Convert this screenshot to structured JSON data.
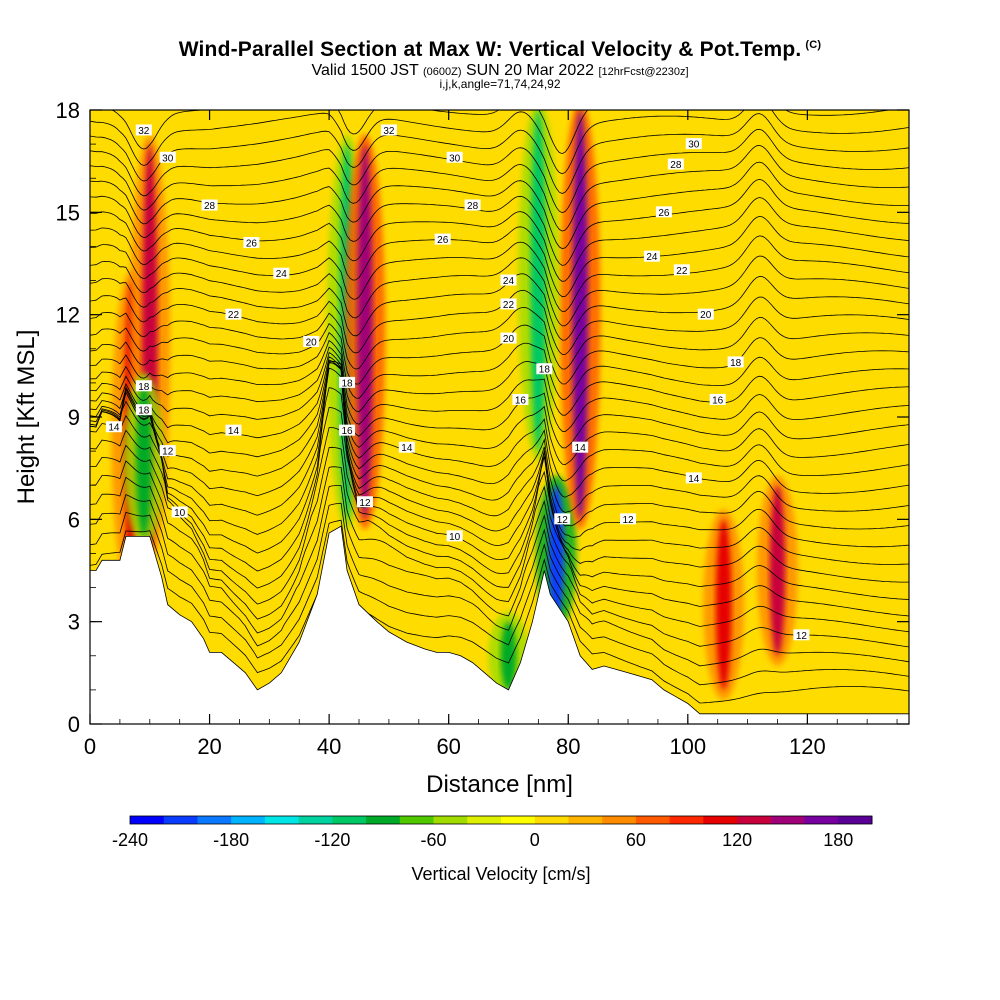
{
  "header": {
    "title": "Wind-Parallel Section at Max W: Vertical Velocity & Pot.Temp.",
    "copyright": "(C)",
    "subtitle_main_a": "Valid 1500 JST",
    "subtitle_small_a": "(0600Z)",
    "subtitle_main_b": "SUN 20 Mar 2022",
    "subtitle_small_b": "[12hrFcst@2230z]",
    "indices": "i,j,k,angle=71,74,24,92"
  },
  "chart_data": {
    "type": "heatmap",
    "xlabel": "Distance [nm]",
    "ylabel": "Height [Kft MSL]",
    "xlim": [
      0,
      137
    ],
    "ylim": [
      0,
      18
    ],
    "x_ticks": [
      0,
      20,
      40,
      60,
      80,
      100,
      120
    ],
    "y_ticks": [
      0,
      3,
      6,
      9,
      12,
      15,
      18
    ],
    "colorbar": {
      "label": "Vertical Velocity [cm/s]",
      "min": -240,
      "max": 200,
      "step": 20,
      "tick_labels": [
        -240,
        -180,
        -120,
        -60,
        0,
        60,
        120,
        180
      ],
      "colors": [
        "#0000ff",
        "#0a3cff",
        "#0a78ff",
        "#00b4ff",
        "#00e6e6",
        "#00d2a0",
        "#00c864",
        "#00aa28",
        "#50c800",
        "#a0dc00",
        "#dcf000",
        "#ffff00",
        "#ffdc00",
        "#ffb400",
        "#ff8c00",
        "#ff5a00",
        "#ff2800",
        "#e60000",
        "#c8003c",
        "#a00078",
        "#7800a0",
        "#5a0096"
      ]
    },
    "vertical_velocity_features": [
      {
        "x": 7,
        "z_range": [
          4,
          13
        ],
        "w": 110
      },
      {
        "x": 10,
        "z_range": [
          5,
          17
        ],
        "w": 130
      },
      {
        "x": 9,
        "z_range": [
          5.5,
          10
        ],
        "w": -100
      },
      {
        "x": 43,
        "z_range": [
          6,
          17
        ],
        "w": -110
      },
      {
        "x": 46,
        "z_range": [
          6,
          17
        ],
        "w": 140
      },
      {
        "x": 70,
        "z_range": [
          1,
          3
        ],
        "w": -90
      },
      {
        "x": 78,
        "z_range": [
          3,
          7
        ],
        "w": -220
      },
      {
        "x": 82,
        "z_range": [
          6,
          18
        ],
        "w": 170
      },
      {
        "x": 75,
        "z_range": [
          8,
          18
        ],
        "w": -110
      },
      {
        "x": 115,
        "z_range": [
          2,
          7
        ],
        "w": 130
      },
      {
        "x": 106,
        "z_range": [
          1,
          6
        ],
        "w": 110
      }
    ],
    "terrain_kft": [
      [
        0,
        4.5
      ],
      [
        1,
        4.5
      ],
      [
        2,
        4.8
      ],
      [
        5,
        4.8
      ],
      [
        6,
        5.5
      ],
      [
        10,
        5.5
      ],
      [
        12,
        4.3
      ],
      [
        13,
        3.5
      ],
      [
        15,
        3.2
      ],
      [
        17,
        3.0
      ],
      [
        19,
        2.5
      ],
      [
        20,
        2.1
      ],
      [
        22,
        2.1
      ],
      [
        24,
        1.8
      ],
      [
        26,
        1.5
      ],
      [
        28,
        1.0
      ],
      [
        30,
        1.2
      ],
      [
        32,
        1.5
      ],
      [
        35,
        2.4
      ],
      [
        38,
        3.8
      ],
      [
        40,
        5.6
      ],
      [
        42,
        5.8
      ],
      [
        43,
        4.5
      ],
      [
        45,
        3.5
      ],
      [
        48,
        3.0
      ],
      [
        50,
        2.7
      ],
      [
        53,
        2.4
      ],
      [
        56,
        2.2
      ],
      [
        58,
        2.1
      ],
      [
        60,
        2.1
      ],
      [
        62,
        2.0
      ],
      [
        64,
        1.8
      ],
      [
        66,
        1.5
      ],
      [
        68,
        1.2
      ],
      [
        70,
        1.0
      ],
      [
        72,
        1.8
      ],
      [
        74,
        3.0
      ],
      [
        76,
        4.5
      ],
      [
        77,
        3.8
      ],
      [
        80,
        3.0
      ],
      [
        82,
        2.0
      ],
      [
        84,
        1.6
      ],
      [
        86,
        1.7
      ],
      [
        88,
        1.6
      ],
      [
        90,
        1.5
      ],
      [
        92,
        1.4
      ],
      [
        94,
        1.3
      ],
      [
        96,
        1.0
      ],
      [
        98,
        0.8
      ],
      [
        100,
        0.6
      ],
      [
        102,
        0.3
      ],
      [
        104,
        0.3
      ],
      [
        106,
        0.3
      ],
      [
        120,
        0.3
      ],
      [
        130,
        0.3
      ],
      [
        136,
        0.3
      ],
      [
        137,
        0.3
      ]
    ],
    "theta_contour_labels": [
      "32",
      "30",
      "28",
      "26",
      "24",
      "22",
      "20",
      "18",
      "16",
      "14",
      "12",
      "10"
    ],
    "theta_label_positions": [
      {
        "text": "32",
        "x": 9,
        "z": 17.4
      },
      {
        "text": "30",
        "x": 13,
        "z": 16.6
      },
      {
        "text": "28",
        "x": 20,
        "z": 15.2
      },
      {
        "text": "26",
        "x": 27,
        "z": 14.1
      },
      {
        "text": "24",
        "x": 32,
        "z": 13.2
      },
      {
        "text": "22",
        "x": 24,
        "z": 12.0
      },
      {
        "text": "20",
        "x": 37,
        "z": 11.2
      },
      {
        "text": "18",
        "x": 9,
        "z": 9.9
      },
      {
        "text": "18",
        "x": 9,
        "z": 9.2
      },
      {
        "text": "14",
        "x": 4,
        "z": 8.7
      },
      {
        "text": "14",
        "x": 24,
        "z": 8.6
      },
      {
        "text": "12",
        "x": 13,
        "z": 8.0
      },
      {
        "text": "10",
        "x": 15,
        "z": 6.2
      },
      {
        "text": "32",
        "x": 50,
        "z": 17.4
      },
      {
        "text": "30",
        "x": 61,
        "z": 16.6
      },
      {
        "text": "28",
        "x": 64,
        "z": 15.2
      },
      {
        "text": "26",
        "x": 59,
        "z": 14.2
      },
      {
        "text": "24",
        "x": 70,
        "z": 13.0
      },
      {
        "text": "22",
        "x": 70,
        "z": 12.3
      },
      {
        "text": "20",
        "x": 70,
        "z": 11.3
      },
      {
        "text": "18",
        "x": 43,
        "z": 10.0
      },
      {
        "text": "16",
        "x": 43,
        "z": 8.6
      },
      {
        "text": "14",
        "x": 53,
        "z": 8.1
      },
      {
        "text": "12",
        "x": 46,
        "z": 6.5
      },
      {
        "text": "10",
        "x": 61,
        "z": 5.5
      },
      {
        "text": "18",
        "x": 76,
        "z": 10.4
      },
      {
        "text": "16",
        "x": 72,
        "z": 9.5
      },
      {
        "text": "14",
        "x": 82,
        "z": 8.1
      },
      {
        "text": "12",
        "x": 79,
        "z": 6.0
      },
      {
        "text": "12",
        "x": 90,
        "z": 6.0
      },
      {
        "text": "30",
        "x": 101,
        "z": 17.0
      },
      {
        "text": "28",
        "x": 98,
        "z": 16.4
      },
      {
        "text": "26",
        "x": 96,
        "z": 15.0
      },
      {
        "text": "24",
        "x": 94,
        "z": 13.7
      },
      {
        "text": "22",
        "x": 99,
        "z": 13.3
      },
      {
        "text": "20",
        "x": 103,
        "z": 12.0
      },
      {
        "text": "18",
        "x": 108,
        "z": 10.6
      },
      {
        "text": "16",
        "x": 105,
        "z": 9.5
      },
      {
        "text": "14",
        "x": 101,
        "z": 7.2
      },
      {
        "text": "12",
        "x": 119,
        "z": 2.6
      }
    ]
  }
}
